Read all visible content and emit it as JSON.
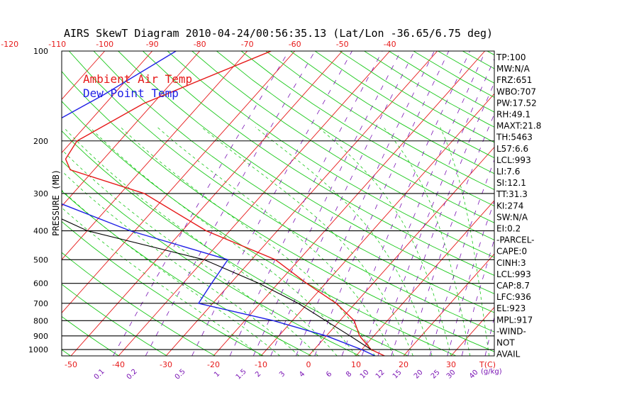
{
  "chart_data": {
    "type": "skewt",
    "title": "AIRS SkewT Diagram 2010-04-24/00:56:35.13 (Lat/Lon -36.65/6.75 deg)",
    "ylabel": "PRESSURE (MB)",
    "xlabel_bottom_unit": "T(C)",
    "mixing_ratio_unit": "(g/kg)",
    "pressure_range": [
      1050,
      100
    ],
    "pressure_ticks": [
      100,
      200,
      300,
      400,
      500,
      600,
      700,
      800,
      900,
      1000
    ],
    "isobars": [
      200,
      300,
      400,
      500,
      600,
      700,
      800,
      900,
      1000
    ],
    "top_temp_ticks": [
      -120,
      -110,
      -100,
      -90,
      -80,
      -70,
      -60,
      -50,
      -40
    ],
    "bottom_temp_ticks": [
      -50,
      -40,
      -30,
      -20,
      -10,
      0,
      10,
      20,
      30
    ],
    "mixing_ratio_labels": [
      "0.1",
      "0.2",
      "0.5",
      "1",
      "1.5",
      "2",
      "3",
      "4",
      "6",
      "8",
      "10",
      "12",
      "15",
      "20",
      "25",
      "30",
      "40"
    ],
    "legend": [
      {
        "label": "Ambient Air Temp",
        "color": "#e61919"
      },
      {
        "label": "Dew Point Temp",
        "color": "#2020e6"
      }
    ],
    "series": [
      {
        "name": "Ambient Air Temp",
        "color": "#e61919",
        "points": [
          {
            "p": 100,
            "t": -65
          },
          {
            "p": 150,
            "t": -82
          },
          {
            "p": 200,
            "t": -89
          },
          {
            "p": 230,
            "t": -88
          },
          {
            "p": 250,
            "t": -85
          },
          {
            "p": 300,
            "t": -65
          },
          {
            "p": 400,
            "t": -45
          },
          {
            "p": 500,
            "t": -25
          },
          {
            "p": 600,
            "t": -14
          },
          {
            "p": 700,
            "t": -4
          },
          {
            "p": 800,
            "t": 3
          },
          {
            "p": 900,
            "t": 7
          },
          {
            "p": 1000,
            "t": 12
          },
          {
            "p": 1050,
            "t": 16
          }
        ]
      },
      {
        "name": "Dew Point Temp",
        "color": "#2020e6",
        "points": [
          {
            "p": 100,
            "t": -85
          },
          {
            "p": 140,
            "t": -92
          },
          {
            "p": 200,
            "t": -101
          },
          {
            "p": 250,
            "t": -101
          },
          {
            "p": 300,
            "t": -88
          },
          {
            "p": 400,
            "t": -61
          },
          {
            "p": 500,
            "t": -35
          },
          {
            "p": 600,
            "t": -34
          },
          {
            "p": 700,
            "t": -33
          },
          {
            "p": 800,
            "t": -14
          },
          {
            "p": 900,
            "t": 0
          },
          {
            "p": 1000,
            "t": 10
          },
          {
            "p": 1050,
            "t": 14
          }
        ]
      },
      {
        "name": "Parcel",
        "color": "#000000",
        "points": [
          {
            "p": 130,
            "t": -115
          },
          {
            "p": 200,
            "t": -108
          },
          {
            "p": 300,
            "t": -94
          },
          {
            "p": 400,
            "t": -70
          },
          {
            "p": 500,
            "t": -40
          },
          {
            "p": 600,
            "t": -24
          },
          {
            "p": 700,
            "t": -12
          },
          {
            "p": 800,
            "t": -3
          },
          {
            "p": 900,
            "t": 5
          },
          {
            "p": 1000,
            "t": 12
          }
        ]
      }
    ],
    "indices": [
      "TP:100",
      "MW:N/A",
      "FRZ:651",
      "WBO:707",
      "PW:17.52",
      "RH:49.1",
      "MAXT:21.8",
      "TH:5463",
      "L57:6.6",
      "LCL:993",
      "LI:7.6",
      "SI:12.1",
      "TT:31.3",
      "KI:274",
      "SW:N/A",
      "EI:0.2",
      "-PARCEL-",
      "CAPE:0",
      "CINH:3",
      "LCL:993",
      "CAP:8.7",
      "LFC:936",
      "EL:923",
      "MPL:917",
      "-WIND-",
      "NOT",
      "AVAIL"
    ]
  },
  "colors": {
    "isotherm": "#e61919",
    "dry_adiabat": "#19c819",
    "moist_adiabat": "#19c819",
    "mixing_ratio": "#7a14b4",
    "isobar": "#000000",
    "axis_text": "#000000",
    "temp_tick_text": "#e61919",
    "mixing_ratio_text": "#7a14b4"
  }
}
